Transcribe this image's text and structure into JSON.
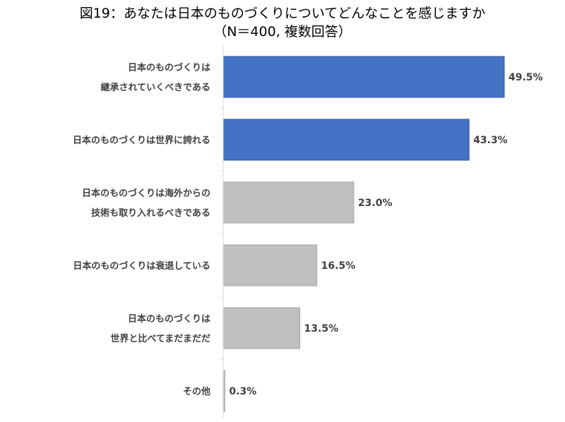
{
  "chart_data": {
    "type": "bar",
    "orientation": "horizontal",
    "title": "図19：あなたは日本のものづくりについてどんなことを感じますか",
    "subtitle": "（N＝400, 複数回答）",
    "categories": [
      [
        "日本のものづくりは",
        "継承されていくべきである"
      ],
      [
        "日本のものづくりは世界に誇れる"
      ],
      [
        "日本のものづくりは海外からの",
        "技術も取り入れるべきである"
      ],
      [
        "日本のものづくりは衰退している"
      ],
      [
        "日本のものづくりは",
        "世界と比べてまだまだだ"
      ],
      [
        "その他"
      ]
    ],
    "values": [
      49.5,
      43.3,
      23.0,
      16.5,
      13.5,
      0.3
    ],
    "value_labels": [
      "49.5%",
      "43.3%",
      "23.0%",
      "16.5%",
      "13.5%",
      "0.3%"
    ],
    "bar_colors": [
      "#4472C4",
      "#4472C4",
      "#BFBFBF",
      "#BFBFBF",
      "#BFBFBF",
      "#BFBFBF"
    ],
    "xlim": [
      0,
      60
    ],
    "grid": false,
    "legend": "none"
  }
}
